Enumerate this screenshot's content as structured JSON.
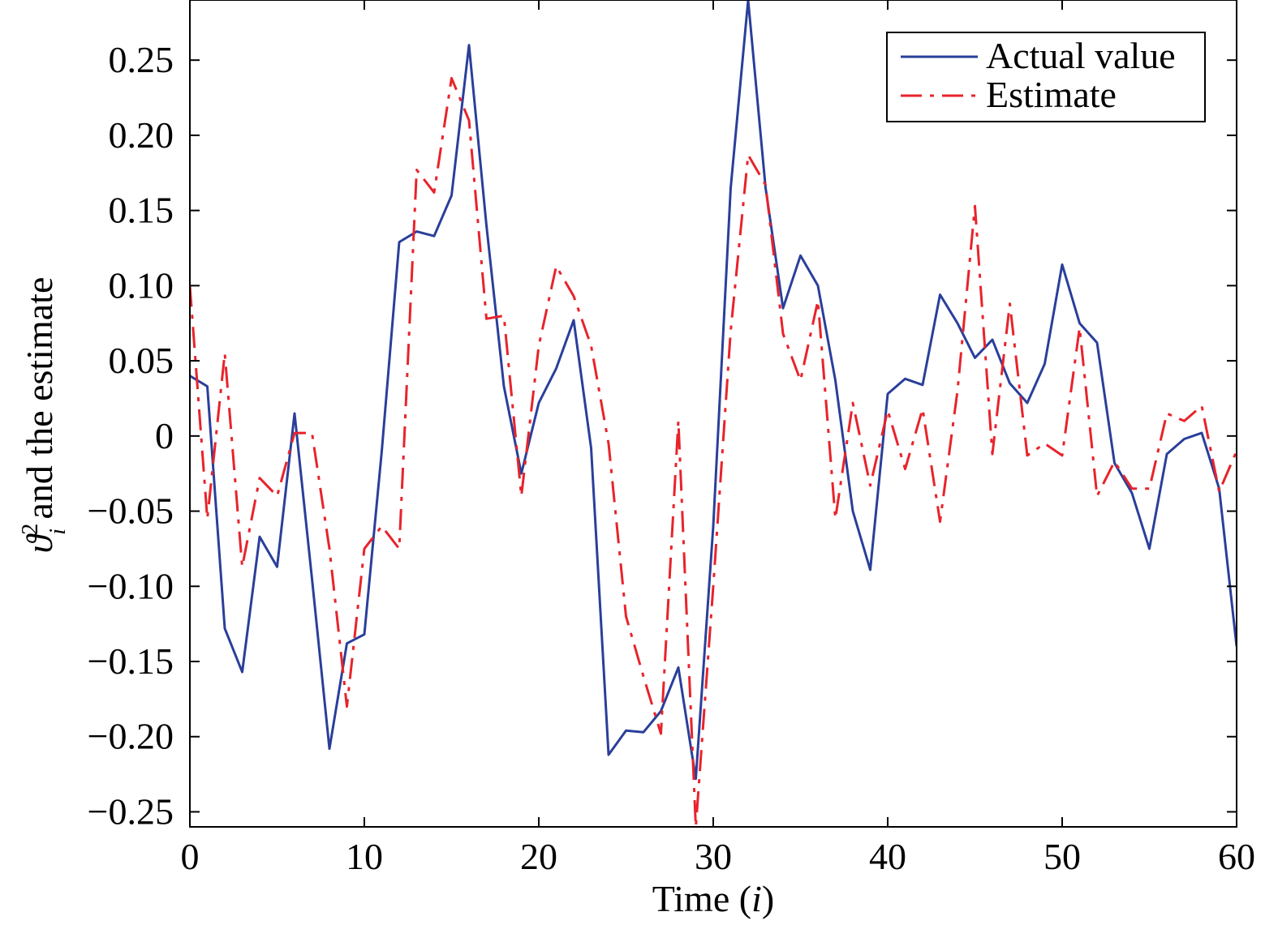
{
  "chart_data": {
    "type": "line",
    "xlabel": "Time (i)",
    "ylabel": "ϑ²ᵢ and the estimate",
    "xlim": [
      0,
      60
    ],
    "ylim": [
      -0.26,
      0.29
    ],
    "xticks": [
      0,
      10,
      20,
      30,
      40,
      50,
      60
    ],
    "yticks": [
      -0.25,
      -0.2,
      -0.15,
      -0.1,
      -0.05,
      0,
      0.05,
      0.1,
      0.15,
      0.2,
      0.25
    ],
    "ytick_labels": [
      "−0.25",
      "−0.20",
      "−0.15",
      "−0.10",
      "−0.05",
      "0",
      "0.05",
      "0.10",
      "0.15",
      "0.20",
      "0.25"
    ],
    "grid": false,
    "legend_position": "top-right",
    "series": [
      {
        "name": "Actual value",
        "color": "#2a3f9a",
        "style": "solid",
        "x": [
          0,
          1,
          2,
          3,
          4,
          5,
          6,
          7,
          8,
          9,
          10,
          11,
          12,
          13,
          14,
          15,
          16,
          17,
          18,
          19,
          20,
          21,
          22,
          23,
          24,
          25,
          26,
          27,
          28,
          29,
          30,
          31,
          32,
          33,
          34,
          35,
          36,
          37,
          38,
          39,
          40,
          41,
          42,
          43,
          44,
          45,
          46,
          47,
          48,
          49,
          50,
          51,
          52,
          53,
          54,
          55,
          56,
          57,
          58,
          59,
          60
        ],
        "values": [
          0.04,
          0.033,
          -0.128,
          -0.157,
          -0.067,
          -0.087,
          0.015,
          -0.095,
          -0.208,
          -0.138,
          -0.132,
          -0.01,
          0.129,
          0.136,
          0.133,
          0.16,
          0.26,
          0.14,
          0.033,
          -0.025,
          0.022,
          0.045,
          0.077,
          -0.008,
          -0.212,
          -0.196,
          -0.197,
          -0.183,
          -0.154,
          -0.228,
          -0.06,
          0.165,
          0.29,
          0.165,
          0.085,
          0.12,
          0.1,
          0.037,
          -0.05,
          -0.089,
          0.028,
          0.038,
          0.034,
          0.094,
          0.075,
          0.052,
          0.064,
          0.035,
          0.022,
          0.048,
          0.114,
          0.075,
          0.062,
          -0.018,
          -0.038,
          -0.075,
          -0.012,
          -0.002,
          0.002,
          -0.035,
          -0.14
        ]
      },
      {
        "name": "Estimate",
        "color": "#e8232b",
        "style": "dashdot",
        "x": [
          0,
          1,
          2,
          3,
          4,
          5,
          6,
          7,
          8,
          9,
          10,
          11,
          12,
          13,
          14,
          15,
          16,
          17,
          18,
          19,
          20,
          21,
          22,
          23,
          24,
          25,
          26,
          27,
          28,
          29,
          30,
          31,
          32,
          33,
          34,
          35,
          36,
          37,
          38,
          39,
          40,
          41,
          42,
          43,
          44,
          45,
          46,
          47,
          48,
          49,
          50,
          51,
          52,
          53,
          54,
          55,
          56,
          57,
          58,
          59,
          60
        ],
        "values": [
          0.1,
          -0.055,
          0.055,
          -0.087,
          -0.028,
          -0.04,
          0.002,
          0.002,
          -0.075,
          -0.18,
          -0.075,
          -0.06,
          -0.075,
          0.177,
          0.162,
          0.238,
          0.21,
          0.078,
          0.08,
          -0.04,
          0.06,
          0.113,
          0.093,
          0.06,
          -0.005,
          -0.12,
          -0.16,
          -0.198,
          0.01,
          -0.26,
          -0.1,
          0.07,
          0.187,
          0.167,
          0.068,
          0.037,
          0.09,
          -0.055,
          0.022,
          -0.033,
          0.017,
          -0.022,
          0.018,
          -0.057,
          0.03,
          0.153,
          -0.012,
          0.088,
          -0.013,
          -0.005,
          -0.013,
          0.072,
          -0.04,
          -0.017,
          -0.035,
          -0.035,
          0.015,
          0.01,
          0.02,
          -0.037,
          -0.01
        ]
      }
    ]
  }
}
